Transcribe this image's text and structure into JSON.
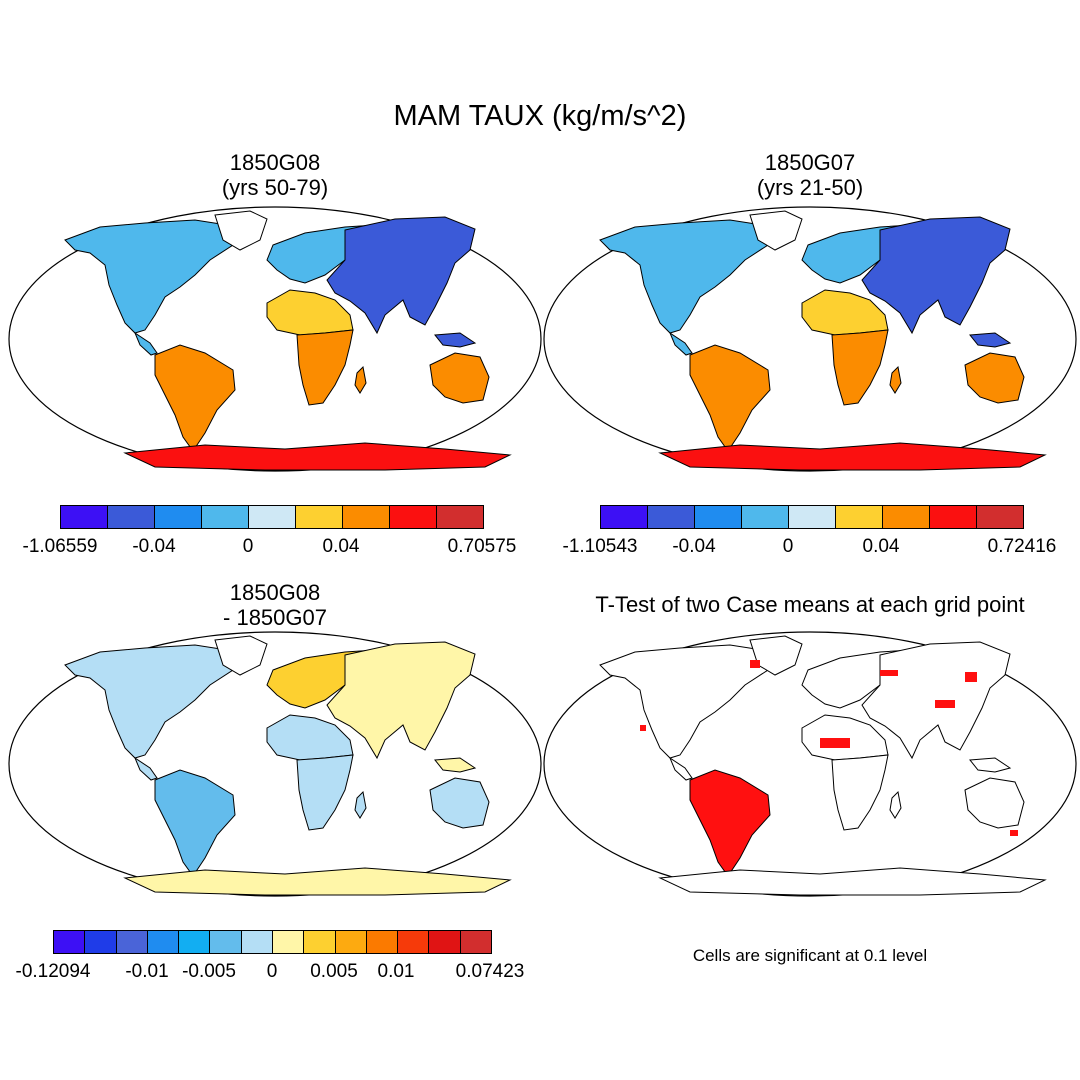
{
  "main_title": "MAM TAUX (kg/m/s^2)",
  "panels": [
    {
      "title_line1": "1850G08",
      "title_line2": "(yrs 50-79)"
    },
    {
      "title_line1": "1850G07",
      "title_line2": "(yrs 21-50)"
    },
    {
      "title_line1": "1850G08",
      "title_line2": "- 1850G07"
    },
    {
      "title_line1": "T-Test of two Case means at each grid point",
      "title_line2": ""
    }
  ],
  "colorbars": [
    {
      "colors": [
        "#3d10f5",
        "#3b5ad8",
        "#1f8cf0",
        "#4fb8ec",
        "#cfe8f5",
        "#fdd030",
        "#fb8c00",
        "#fb1010",
        "#d22e2e"
      ],
      "labels": [
        "-1.06559",
        "-0.04",
        "0",
        "0.04",
        "0.70575"
      ]
    },
    {
      "colors": [
        "#3d10f5",
        "#3b5ad8",
        "#1f8cf0",
        "#4fb8ec",
        "#cfe8f5",
        "#fdd030",
        "#fb8c00",
        "#fb1010",
        "#d22e2e"
      ],
      "labels": [
        "-1.10543",
        "-0.04",
        "0",
        "0.04",
        "0.72416"
      ]
    },
    {
      "colors": [
        "#3d10f5",
        "#1f3ce8",
        "#4a64d8",
        "#1f8cf0",
        "#12aef2",
        "#63bcec",
        "#b4def5",
        "#fff6a8",
        "#fdd030",
        "#fdaa10",
        "#fb7a00",
        "#f63a0a",
        "#e01414",
        "#d22e2e"
      ],
      "labels": [
        "-0.12094",
        "-0.01",
        "-0.005",
        "0",
        "0.005",
        "0.01",
        "0.07423"
      ]
    }
  ],
  "significance_note": "Cells are significant at 0.1 level",
  "map_colors": {
    "panel_a": {
      "na": "#4fb8ec",
      "sa": "#fb8c00",
      "eu": "#4fb8ec",
      "as": "#3b5ad8",
      "af_n": "#fdd030",
      "af_s": "#fb8c00",
      "au": "#fb8c00",
      "ant": "#fb1010"
    },
    "panel_b": {
      "na": "#4fb8ec",
      "sa": "#fb8c00",
      "eu": "#4fb8ec",
      "as": "#3b5ad8",
      "af_n": "#fdd030",
      "af_s": "#fb8c00",
      "au": "#fb8c00",
      "ant": "#fb1010"
    },
    "panel_c": {
      "na": "#b4def5",
      "sa": "#63bcec",
      "eu": "#fdd030",
      "as": "#fff6a8",
      "af_n": "#b4def5",
      "af_s": "#b4def5",
      "au": "#b4def5",
      "ant": "#fff6a8"
    },
    "panel_d": {
      "na": "#ffffff",
      "sa": "#ff1010",
      "eu": "#ffffff",
      "as": "#ffffff",
      "af_n": "#ffffff",
      "af_s": "#ffffff",
      "au": "#ffffff",
      "ant": "#ffffff"
    }
  }
}
